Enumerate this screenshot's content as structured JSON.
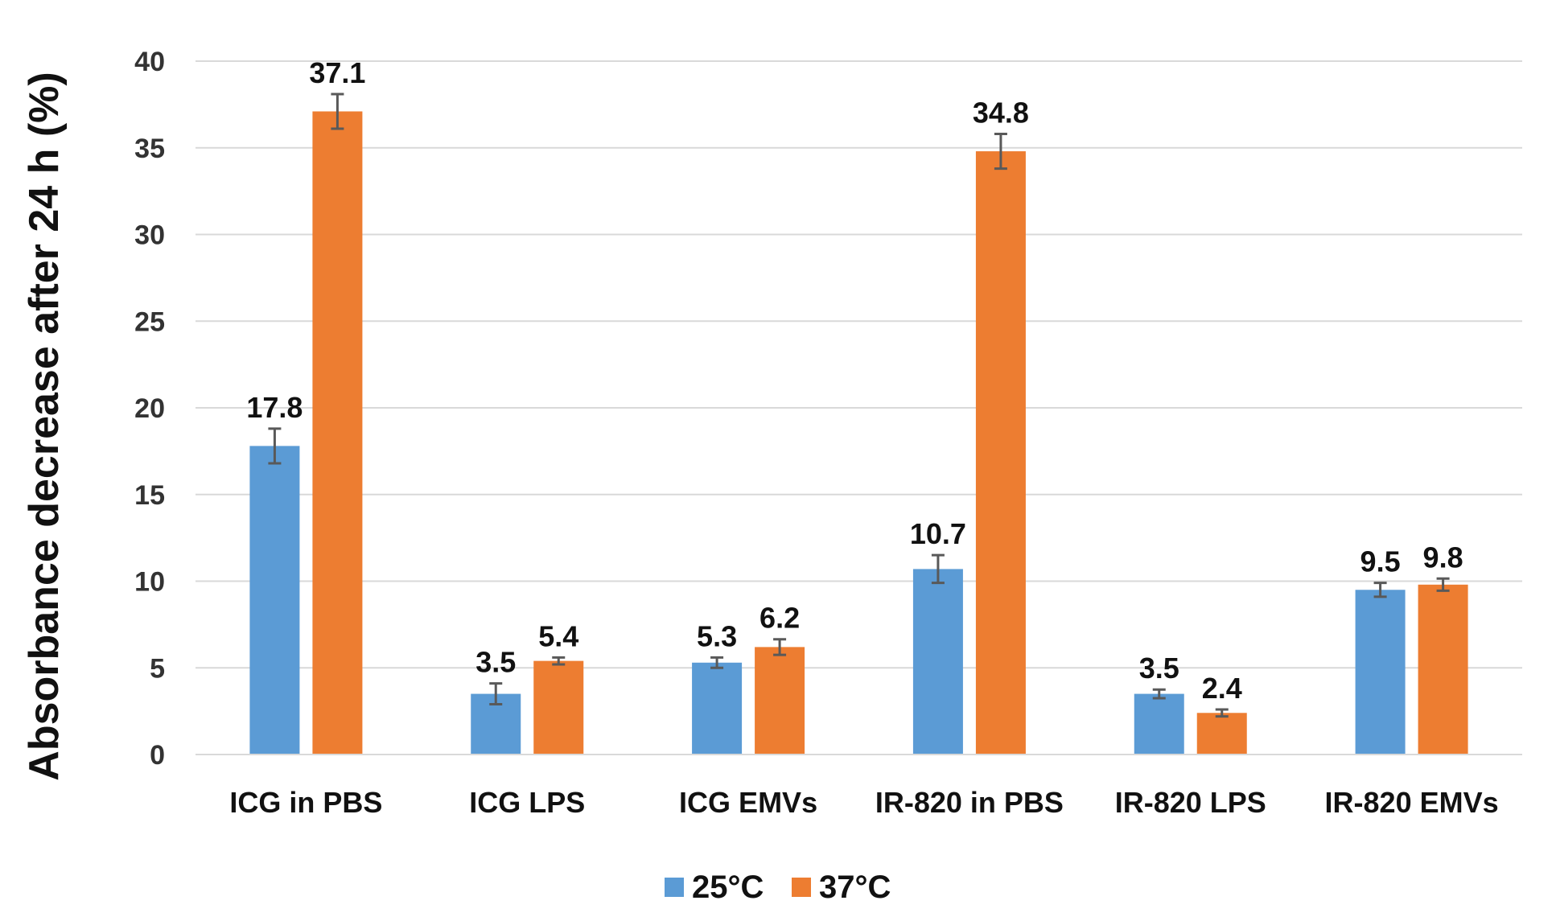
{
  "chart_data": {
    "type": "bar",
    "title": "",
    "xlabel": "",
    "ylabel": "Absorbance decrease after 24 h (%)",
    "ylim": [
      0,
      40
    ],
    "yticks": [
      0,
      5,
      10,
      15,
      20,
      25,
      30,
      35,
      40
    ],
    "grid": true,
    "legend_position": "bottom",
    "categories": [
      "ICG in PBS",
      "ICG LPS",
      "ICG EMVs",
      "IR-820 in PBS",
      "IR-820 LPS",
      "IR-820 EMVs"
    ],
    "series": [
      {
        "name": "25°C",
        "color": "#5b9bd5",
        "values": [
          17.8,
          3.5,
          5.3,
          10.7,
          3.5,
          9.5
        ],
        "labels": [
          "17.8",
          "3.5",
          "5.3",
          "10.7",
          "3.5",
          "9.5"
        ],
        "errors": [
          1.0,
          0.6,
          0.3,
          0.8,
          0.25,
          0.4
        ]
      },
      {
        "name": "37°C",
        "color": "#ed7d31",
        "values": [
          37.1,
          5.4,
          6.2,
          34.8,
          2.4,
          9.8
        ],
        "labels": [
          "37.1",
          "5.4",
          "6.2",
          "34.8",
          "2.4",
          "9.8"
        ],
        "errors": [
          1.0,
          0.2,
          0.45,
          1.0,
          0.2,
          0.35
        ]
      }
    ]
  }
}
